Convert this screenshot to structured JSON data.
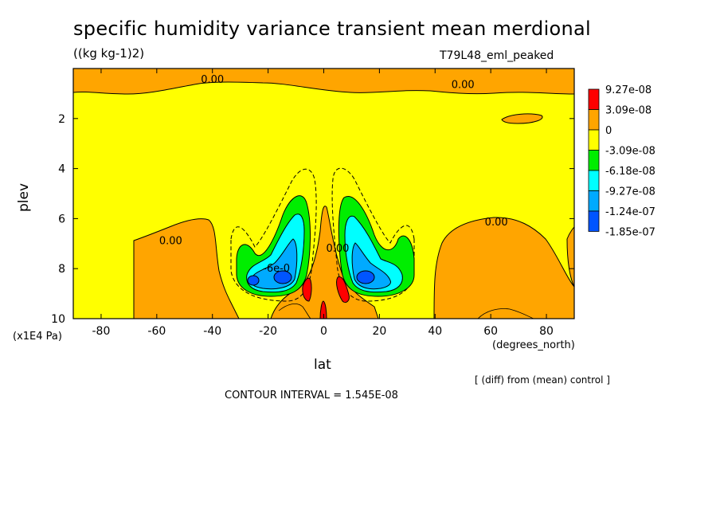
{
  "chart_data": {
    "type": "heatmap",
    "title": "specific humidity variance transient mean merdional",
    "units": "((kg kg-1)2)",
    "run_name": "T79L48_eml_peaked",
    "xlabel": "lat",
    "ylabel": "plev",
    "x_units": "(degrees_north)",
    "y_units": "(x1E4 Pa)",
    "xlim": [
      -90,
      90
    ],
    "ylim": [
      10,
      0
    ],
    "x_ticks": [
      "-80",
      "-60",
      "-40",
      "-20",
      "0",
      "20",
      "40",
      "60",
      "80"
    ],
    "y_ticks": [
      "2",
      "4",
      "6",
      "8",
      "10"
    ],
    "legend": {
      "placement": "right",
      "levels": [
        "9.27e-08",
        "3.09e-08",
        "0",
        "-3.09e-08",
        "-6.18e-08",
        "-9.27e-08",
        "-1.24e-07",
        "-1.85e-07"
      ],
      "colors": [
        "#ff0000",
        "#ffa500",
        "#ffff00",
        "#00ee00",
        "#00ffff",
        "#00aaff",
        "#0055ff"
      ]
    },
    "contour_labels": [
      {
        "text": "0.00",
        "lat": -40,
        "plev": 0.45
      },
      {
        "text": "0.00",
        "lat": 50,
        "plev": 0.65
      },
      {
        "text": "0.00",
        "lat": -55,
        "plev": 6.9
      },
      {
        "text": "0.00",
        "lat": 62,
        "plev": 6.15
      },
      {
        "text": "0.00",
        "lat": 5,
        "plev": 7.2
      },
      {
        "text": "-6e-0",
        "lat": -17,
        "plev": 8.0
      }
    ],
    "note": "[ (diff) from (mean) control ]",
    "contour_interval": "CONTOUR INTERVAL = 1.545E-08"
  }
}
